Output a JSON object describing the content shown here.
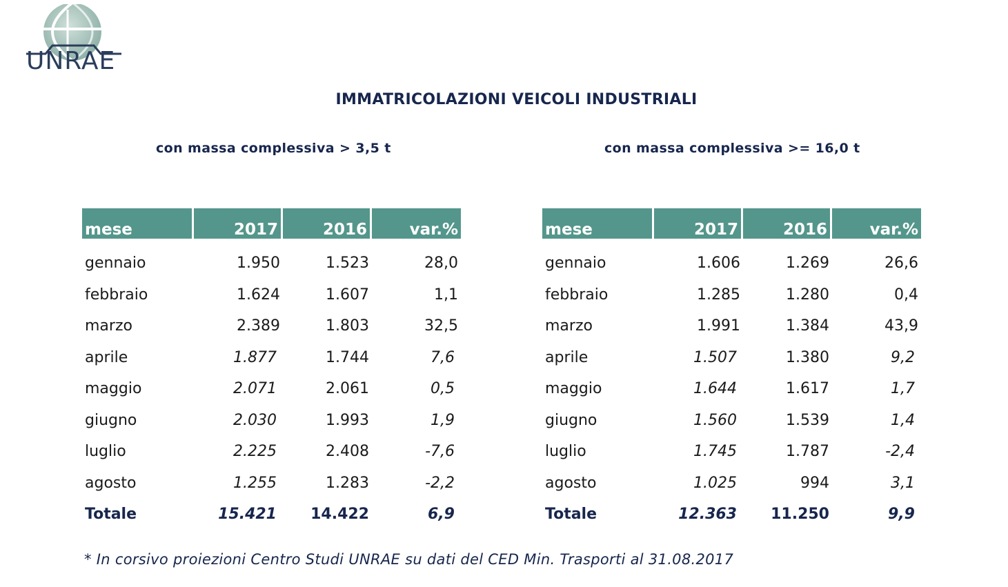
{
  "logo": {
    "text": "UNRAE"
  },
  "title": "IMMATRICOLAZIONI VEICOLI INDUSTRIALI",
  "tables": [
    {
      "subtitle": "con massa complessiva > 3,5 t",
      "headers": [
        "mese",
        "2017",
        "2016",
        "var.%"
      ],
      "rows": [
        {
          "mese": "gennaio",
          "y2017": "1.950",
          "y2016": "1.523",
          "var": "28,0",
          "projection": false
        },
        {
          "mese": "febbraio",
          "y2017": "1.624",
          "y2016": "1.607",
          "var": "1,1",
          "projection": false
        },
        {
          "mese": "marzo",
          "y2017": "2.389",
          "y2016": "1.803",
          "var": "32,5",
          "projection": false
        },
        {
          "mese": "aprile",
          "y2017": "1.877",
          "y2016": "1.744",
          "var": "7,6",
          "projection": true
        },
        {
          "mese": "maggio",
          "y2017": "2.071",
          "y2016": "2.061",
          "var": "0,5",
          "projection": true
        },
        {
          "mese": "giugno",
          "y2017": "2.030",
          "y2016": "1.993",
          "var": "1,9",
          "projection": true
        },
        {
          "mese": "luglio",
          "y2017": "2.225",
          "y2016": "2.408",
          "var": "-7,6",
          "projection": true
        },
        {
          "mese": "agosto",
          "y2017": "1.255",
          "y2016": "1.283",
          "var": "-2,2",
          "projection": true
        }
      ],
      "total": {
        "mese": "Totale",
        "y2017": "15.421",
        "y2016": "14.422",
        "var": "6,9"
      }
    },
    {
      "subtitle": "con massa complessiva >= 16,0 t",
      "headers": [
        "mese",
        "2017",
        "2016",
        "var.%"
      ],
      "rows": [
        {
          "mese": "gennaio",
          "y2017": "1.606",
          "y2016": "1.269",
          "var": "26,6",
          "projection": false
        },
        {
          "mese": "febbraio",
          "y2017": "1.285",
          "y2016": "1.280",
          "var": "0,4",
          "projection": false
        },
        {
          "mese": "marzo",
          "y2017": "1.991",
          "y2016": "1.384",
          "var": "43,9",
          "projection": false
        },
        {
          "mese": "aprile",
          "y2017": "1.507",
          "y2016": "1.380",
          "var": "9,2",
          "projection": true
        },
        {
          "mese": "maggio",
          "y2017": "1.644",
          "y2016": "1.617",
          "var": "1,7",
          "projection": true
        },
        {
          "mese": "giugno",
          "y2017": "1.560",
          "y2016": "1.539",
          "var": "1,4",
          "projection": true
        },
        {
          "mese": "luglio",
          "y2017": "1.745",
          "y2016": "1.787",
          "var": "-2,4",
          "projection": true
        },
        {
          "mese": "agosto",
          "y2017": "1.025",
          "y2016": "994",
          "var": "3,1",
          "projection": true
        }
      ],
      "total": {
        "mese": "Totale",
        "y2017": "12.363",
        "y2016": "11.250",
        "var": "9,9"
      }
    }
  ],
  "footnote": "* In corsivo proiezioni Centro Studi UNRAE su dati del CED Min. Trasporti al 31.08.2017",
  "colors": {
    "header_bg": "#54968b",
    "title": "#17264d",
    "logo_globe": "#8fb1a8",
    "logo_text": "#2b3d5c"
  }
}
